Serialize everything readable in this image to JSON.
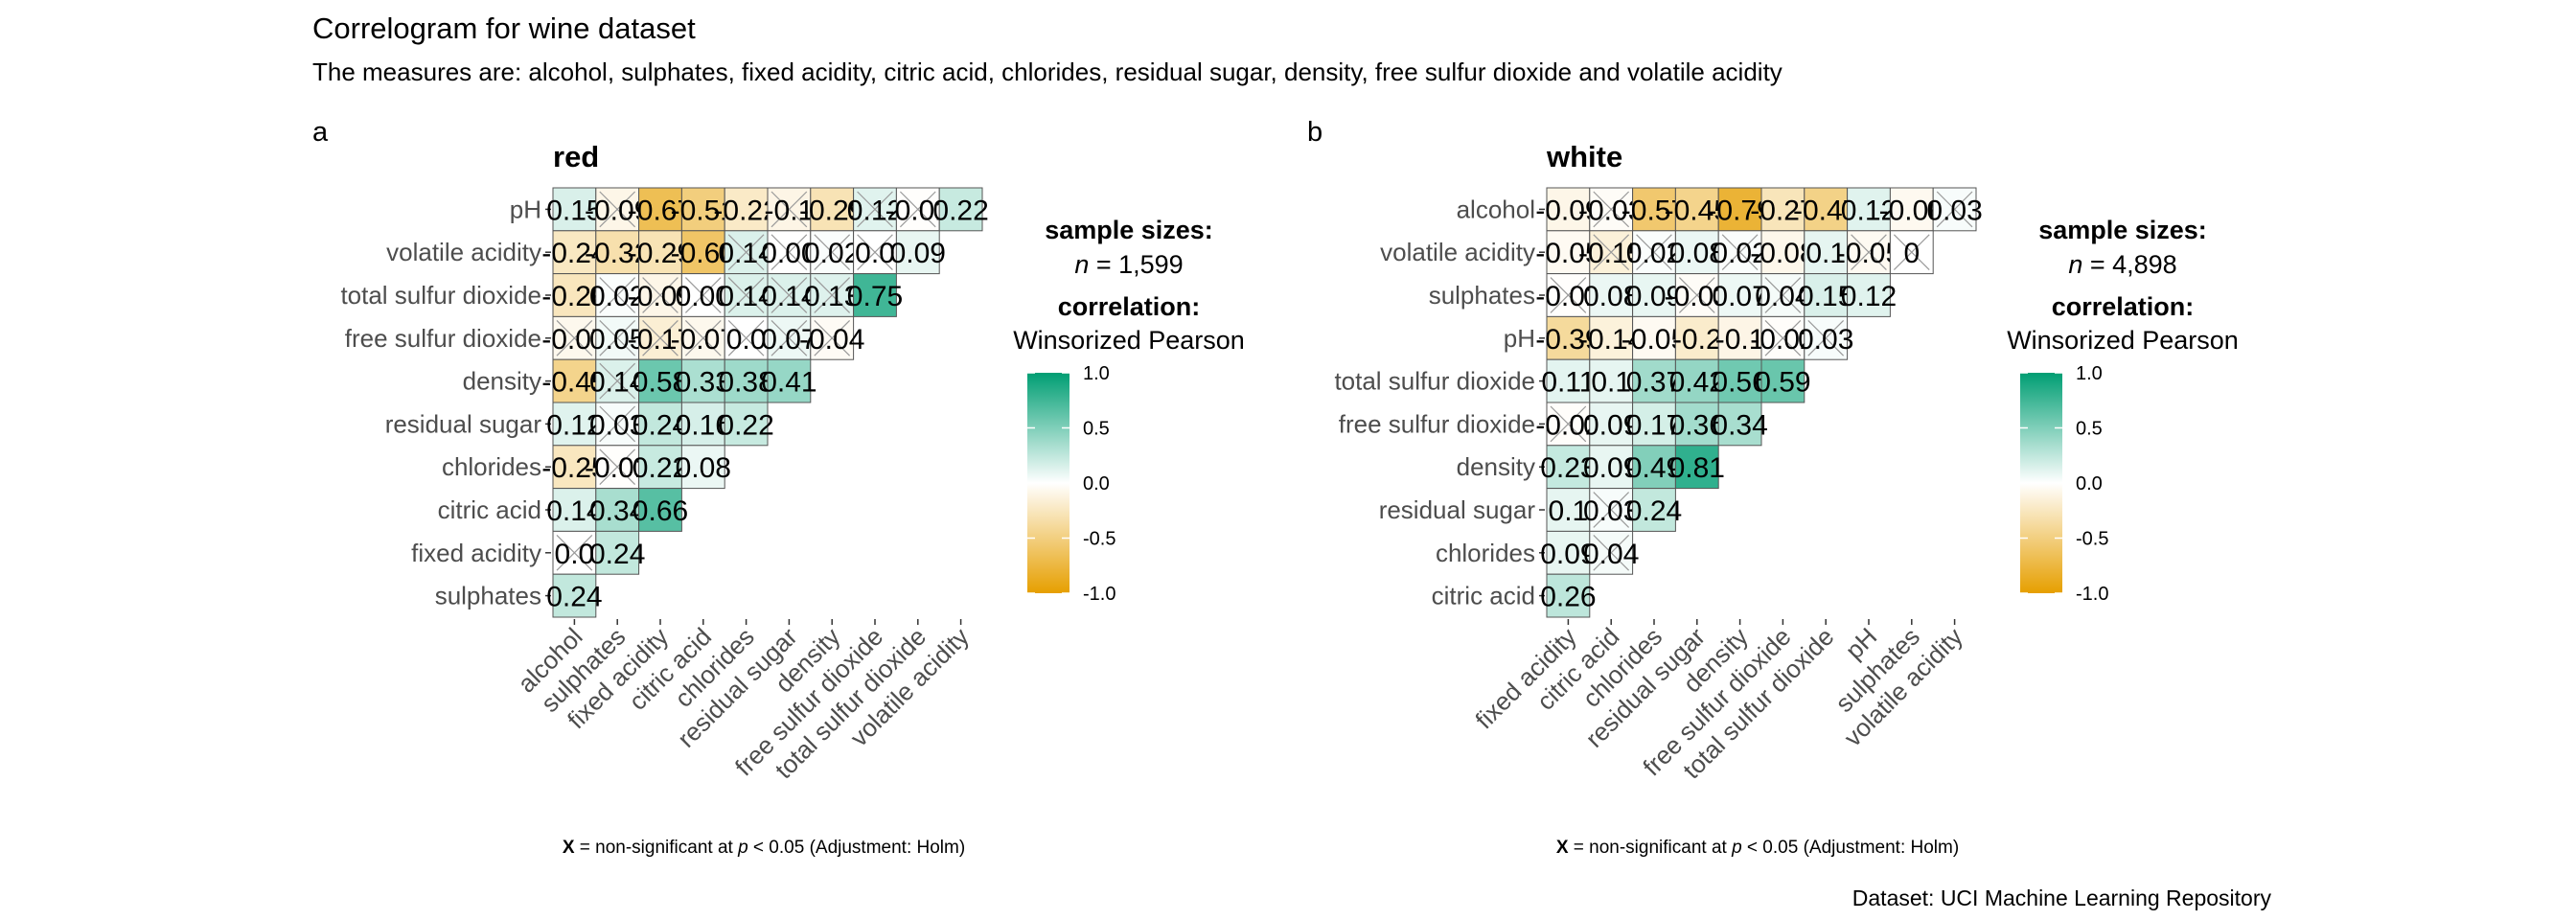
{
  "title": "Correlogram for wine dataset",
  "subtitle": "The measures are: alcohol, sulphates, fixed acidity, citric acid, chlorides, residual sugar, density, free sulfur dioxide and volatile acidity",
  "caption": "Dataset: UCI Machine Learning Repository",
  "colors": {
    "low": "#E69F00",
    "mid": "#FFFFFF",
    "high": "#009E73"
  },
  "legend": {
    "sample_sizes_label": "sample sizes:",
    "correlation_label": "correlation:",
    "correlation_method": "Winsorized Pearson",
    "ticks": [
      "1.0",
      "0.5",
      "0.0",
      "-0.5",
      "-1.0"
    ]
  },
  "footnote": {
    "bold": "X",
    "text": "= non-significant at",
    "p": "p",
    "rest": "< 0.05 (Adjustment: Holm)"
  },
  "chart_data": [
    {
      "type": "heatmap",
      "tag": "a",
      "title": "red",
      "n_prefix": "n",
      "n_value": "= 1,599",
      "rows": [
        "pH",
        "volatile acidity",
        "total sulfur dioxide",
        "free sulfur dioxide",
        "density",
        "residual sugar",
        "chlorides",
        "citric acid",
        "fixed acidity",
        "sulphates"
      ],
      "columns": [
        "alcohol",
        "sulphates",
        "fixed acidity",
        "citric acid",
        "chlorides",
        "residual sugar",
        "density",
        "free sulfur dioxide",
        "total sulfur dioxide",
        "volatile acidity"
      ],
      "values": [
        [
          0.15,
          -0.09,
          -0.67,
          -0.51,
          -0.22,
          -0.1,
          -0.29,
          0.12,
          -0.01,
          0.22
        ],
        [
          -0.24,
          -0.32,
          -0.29,
          -0.6,
          0.14,
          0.0,
          0.02,
          0.0,
          0.09
        ],
        [
          -0.26,
          0.02,
          -0.09,
          0.0,
          0.14,
          0.14,
          0.13,
          0.75
        ],
        [
          -0.07,
          0.05,
          -0.17,
          -0.07,
          0.0,
          0.07,
          -0.04
        ],
        [
          -0.45,
          0.14,
          0.58,
          0.33,
          0.38,
          0.41
        ],
        [
          0.12,
          0.03,
          0.24,
          0.16,
          0.22
        ],
        [
          -0.25,
          -0.01,
          0.22,
          0.08
        ],
        [
          0.14,
          0.34,
          0.66
        ],
        [
          0.0,
          0.24
        ],
        [
          0.24
        ]
      ],
      "labels": [
        [
          "0.15",
          "-0.09",
          "-0.67",
          "-0.51",
          "-0.22",
          "-0.1",
          "-0.29",
          "0.12",
          "-0.01",
          "0.22"
        ],
        [
          "-0.24",
          "-0.32",
          "-0.29",
          "-0.60",
          "0.14",
          "0.00",
          "0.02",
          "0.0",
          "0.09"
        ],
        [
          "-0.26",
          "0.02",
          "-0.09",
          "0.00",
          "0.14",
          "0.14",
          "0.13",
          "0.75"
        ],
        [
          "-0.07",
          "0.05",
          "-0.17",
          "-0.07",
          "0.0",
          "0.07",
          "-0.04"
        ],
        [
          "-0.45",
          "0.14",
          "0.58",
          "0.33",
          "0.38",
          "0.41"
        ],
        [
          "0.12",
          "0.03",
          "0.24",
          "0.16",
          "0.22"
        ],
        [
          "-0.25",
          "-0.01",
          "0.22",
          "0.08"
        ],
        [
          "0.14",
          "0.34",
          "0.66"
        ],
        [
          "0.0",
          "0.24"
        ],
        [
          "0.24"
        ]
      ],
      "nonsig": [
        [
          false,
          true,
          false,
          false,
          false,
          true,
          false,
          true,
          true,
          false
        ],
        [
          false,
          false,
          false,
          false,
          true,
          true,
          true,
          true,
          false
        ],
        [
          false,
          true,
          true,
          true,
          true,
          true,
          true,
          false
        ],
        [
          true,
          true,
          true,
          true,
          true,
          true,
          true
        ],
        [
          false,
          true,
          false,
          false,
          false,
          false
        ],
        [
          false,
          true,
          false,
          false,
          false
        ],
        [
          false,
          true,
          false,
          false
        ],
        [
          false,
          false,
          false
        ],
        [
          true,
          false
        ],
        [
          false
        ]
      ]
    },
    {
      "type": "heatmap",
      "tag": "b",
      "title": "white",
      "n_prefix": "n",
      "n_value": "= 4,898",
      "rows": [
        "alcohol",
        "volatile acidity",
        "sulphates",
        "pH",
        "total sulfur dioxide",
        "free sulfur dioxide",
        "density",
        "residual sugar",
        "chlorides",
        "citric acid"
      ],
      "columns": [
        "fixed acidity",
        "citric acid",
        "chlorides",
        "residual sugar",
        "density",
        "free sulfur dioxide",
        "total sulfur dioxide",
        "pH",
        "sulphates",
        "volatile acidity"
      ],
      "values": [
        [
          -0.09,
          -0.03,
          -0.57,
          -0.45,
          -0.79,
          -0.27,
          -0.47,
          0.12,
          -0.06,
          0.03
        ],
        [
          -0.05,
          -0.15,
          0.02,
          0.08,
          0.02,
          -0.08,
          0.1,
          -0.05,
          0
        ],
        [
          -0.01,
          0.08,
          0.09,
          -0.03,
          0.07,
          0.04,
          0.15,
          0.12
        ],
        [
          -0.39,
          -0.14,
          -0.05,
          -0.2,
          -0.1,
          -0.02,
          0.03
        ],
        [
          0.11,
          0.1,
          0.37,
          0.42,
          0.56,
          0.59
        ],
        [
          -0.02,
          0.09,
          0.17,
          0.36,
          0.34
        ],
        [
          0.23,
          0.09,
          0.49,
          0.81
        ],
        [
          0.1,
          0.03,
          0.24
        ],
        [
          0.09,
          0.04
        ],
        [
          0.26
        ]
      ],
      "labels": [
        [
          "-0.09",
          "-0.03",
          "-0.57",
          "-0.45",
          "-0.79",
          "-0.27",
          "-0.47",
          "0.12",
          "-0.06",
          "0.03"
        ],
        [
          "-0.05",
          "-0.15",
          "0.02",
          "0.08",
          "0.02",
          "-0.08",
          "0.1",
          "-0.05",
          "0"
        ],
        [
          "-0.01",
          "0.08",
          "0.09",
          "-0.03",
          "0.07",
          "0.04",
          "0.15",
          "0.12"
        ],
        [
          "-0.39",
          "-0.14",
          "-0.05",
          "-0.2",
          "-0.1",
          "-0.02",
          "0.03"
        ],
        [
          "0.11",
          "0.1",
          "0.37",
          "0.42",
          "0.56",
          "0.59"
        ],
        [
          "-0.02",
          "0.09",
          "0.17",
          "0.36",
          "0.34"
        ],
        [
          "0.23",
          "0.09",
          "0.49",
          "0.81"
        ],
        [
          "0.1",
          "0.03",
          "0.24"
        ],
        [
          "0.09",
          "0.04"
        ],
        [
          "0.26"
        ]
      ],
      "nonsig": [
        [
          false,
          true,
          false,
          false,
          false,
          false,
          false,
          false,
          false,
          true
        ],
        [
          false,
          true,
          true,
          false,
          true,
          false,
          false,
          true,
          true
        ],
        [
          true,
          false,
          false,
          true,
          false,
          true,
          false,
          false
        ],
        [
          false,
          false,
          false,
          false,
          false,
          true,
          true
        ],
        [
          false,
          false,
          false,
          false,
          false,
          false
        ],
        [
          true,
          false,
          false,
          false,
          false
        ],
        [
          false,
          false,
          false,
          false
        ],
        [
          false,
          true,
          false
        ],
        [
          false,
          true
        ],
        [
          false
        ]
      ]
    }
  ]
}
